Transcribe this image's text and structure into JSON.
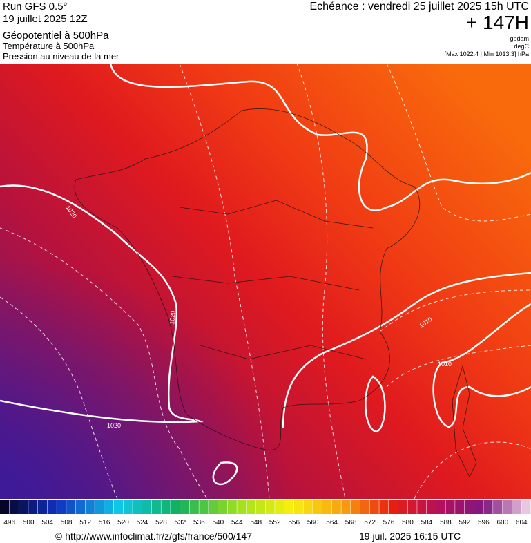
{
  "header": {
    "run": "Run GFS 0.5°",
    "date": "19 juillet 2025 12Z",
    "field": "Géopotentiel à 500hPa",
    "temperature": "Température à 500hPa",
    "pressure": "Pression au niveau de la mer",
    "echeance": "Echéance : vendredi 25 juillet 2025 15h UTC",
    "lead": "+ 147H",
    "units": [
      "gpdam",
      "degC",
      "[Max 1022.4 | Min 1013.3] hPa"
    ]
  },
  "contour_labels": [
    "1020",
    "1020",
    "1020",
    "1010",
    "1010"
  ],
  "colorbar": {
    "ticks": [
      496,
      500,
      504,
      508,
      512,
      516,
      520,
      524,
      528,
      532,
      536,
      540,
      544,
      548,
      552,
      556,
      560,
      564,
      568,
      572,
      576,
      580,
      584,
      588,
      592,
      596,
      600,
      604
    ]
  },
  "footer": {
    "url": "© http://www.infoclimat.fr/z/gfs/france/500/147",
    "time": "19 juil. 2025 16:15 UTC"
  }
}
